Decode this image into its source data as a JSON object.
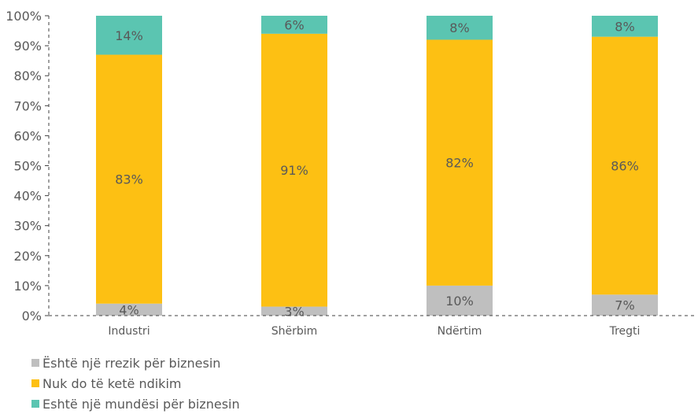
{
  "chart_data": {
    "type": "bar",
    "stacked": true,
    "categories": [
      "Industri",
      "Shërbim",
      "Ndërtim",
      "Tregti"
    ],
    "series": [
      {
        "name": "Është një rrezik për biznesin",
        "values": [
          4,
          3,
          10,
          7
        ],
        "labels": [
          "4%",
          "3%",
          "10%",
          "7%"
        ],
        "color": "#BFBFBF"
      },
      {
        "name": "Nuk do të ketë ndikim",
        "values": [
          83,
          91,
          82,
          86
        ],
        "labels": [
          "83%",
          "91%",
          "82%",
          "86%"
        ],
        "color": "#FDC013"
      },
      {
        "name": "Eshtë një mundësi për biznesin",
        "values": [
          14,
          6,
          8,
          8
        ],
        "labels": [
          "14%",
          "6%",
          "8%",
          "8%"
        ],
        "color": "#5BC5B1"
      }
    ],
    "ylim": [
      0,
      100
    ],
    "yticks": [
      "0%",
      "10%",
      "20%",
      "30%",
      "40%",
      "50%",
      "60%",
      "70%",
      "80%",
      "90%",
      "100%"
    ],
    "legend_position": "bottom-left",
    "grid": false
  }
}
